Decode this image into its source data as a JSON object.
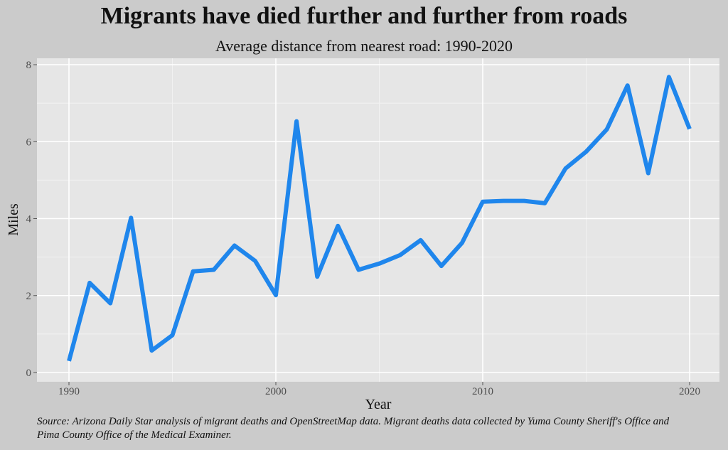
{
  "chart_data": {
    "type": "line",
    "title": "Migrants have died further and further from roads",
    "subtitle": "Average distance from nearest road: 1990-2020",
    "xlabel": "Year",
    "ylabel": "Miles",
    "xlim": [
      1990,
      2020
    ],
    "ylim": [
      0,
      8
    ],
    "x_ticks": [
      1990,
      2000,
      2010,
      2020
    ],
    "y_ticks": [
      0,
      2,
      4,
      6,
      8
    ],
    "grid": true,
    "line_color": "#1f86ec",
    "panel_bg": "#e6e6e6",
    "x": [
      1990,
      1991,
      1992,
      1993,
      1994,
      1995,
      1996,
      1997,
      1998,
      1999,
      2000,
      2001,
      2002,
      2003,
      2004,
      2005,
      2006,
      2007,
      2008,
      2009,
      2010,
      2011,
      2012,
      2013,
      2014,
      2015,
      2016,
      2017,
      2018,
      2019,
      2020
    ],
    "y": [
      0.3,
      2.33,
      1.8,
      4.02,
      0.57,
      0.97,
      2.63,
      2.67,
      3.3,
      2.9,
      2.01,
      6.53,
      2.49,
      3.81,
      2.67,
      2.83,
      3.05,
      3.44,
      2.77,
      3.37,
      4.44,
      4.46,
      4.46,
      4.4,
      5.3,
      5.74,
      6.32,
      7.46,
      5.18,
      7.68,
      6.33
    ],
    "source": "Source: Arizona Daily Star analysis of migrant deaths and OpenStreetMap data. Migrant deaths data collected by Yuma County Sheriff's Office and Pima County Office of the Medical Examiner."
  }
}
